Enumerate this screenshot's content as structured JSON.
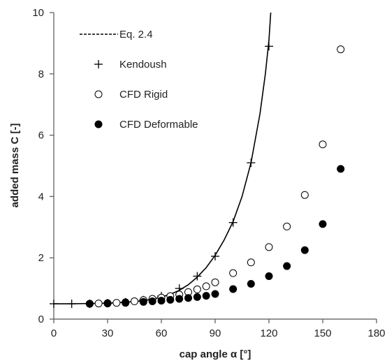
{
  "chart_data": {
    "type": "scatter",
    "title": "",
    "xlabel": "cap angle α [°]",
    "ylabel": "added mass C [-]",
    "xlim": [
      0,
      180
    ],
    "ylim": [
      0,
      10
    ],
    "xticks": [
      0,
      30,
      60,
      90,
      120,
      150,
      180
    ],
    "yticks": [
      0,
      2,
      4,
      6,
      8,
      10
    ],
    "grid": false,
    "legend_position": "top-left",
    "series": [
      {
        "name": "Eq. 2.4",
        "kind": "line",
        "style": "solid",
        "color": "#000000",
        "x": [
          0,
          10,
          20,
          30,
          40,
          50,
          55,
          60,
          65,
          70,
          75,
          80,
          85,
          90,
          95,
          100,
          105,
          110,
          115,
          118,
          120,
          121
        ],
        "y": [
          0.5,
          0.5,
          0.51,
          0.52,
          0.55,
          0.6,
          0.65,
          0.72,
          0.81,
          0.94,
          1.12,
          1.37,
          1.68,
          2.08,
          2.58,
          3.18,
          4.0,
          5.1,
          6.7,
          8.0,
          9.1,
          10.0
        ]
      },
      {
        "name": "Kendoush",
        "kind": "scatter",
        "marker": "plus",
        "color": "#000000",
        "x": [
          0,
          10,
          20,
          30,
          40,
          50,
          60,
          70,
          80,
          90,
          100,
          110,
          120
        ],
        "y": [
          0.5,
          0.5,
          0.5,
          0.52,
          0.55,
          0.62,
          0.75,
          1.0,
          1.4,
          2.05,
          3.15,
          5.1,
          8.9
        ]
      },
      {
        "name": "CFD Rigid",
        "kind": "scatter",
        "marker": "open-circle",
        "color": "#000000",
        "x": [
          20,
          25,
          30,
          35,
          40,
          45,
          50,
          55,
          60,
          65,
          70,
          75,
          80,
          85,
          90,
          100,
          110,
          120,
          130,
          140,
          150,
          160
        ],
        "y": [
          0.5,
          0.51,
          0.52,
          0.53,
          0.55,
          0.58,
          0.62,
          0.66,
          0.7,
          0.75,
          0.8,
          0.88,
          0.97,
          1.07,
          1.2,
          1.5,
          1.85,
          2.35,
          3.02,
          4.05,
          5.7,
          8.8
        ]
      },
      {
        "name": "CFD Deformable",
        "kind": "scatter",
        "marker": "filled-circle",
        "color": "#000000",
        "x": [
          20,
          30,
          40,
          50,
          55,
          60,
          65,
          70,
          75,
          80,
          85,
          90,
          100,
          110,
          120,
          130,
          140,
          150,
          160
        ],
        "y": [
          0.5,
          0.51,
          0.53,
          0.56,
          0.58,
          0.6,
          0.63,
          0.66,
          0.69,
          0.72,
          0.76,
          0.82,
          0.98,
          1.15,
          1.4,
          1.73,
          2.25,
          3.1,
          4.9
        ]
      }
    ]
  }
}
